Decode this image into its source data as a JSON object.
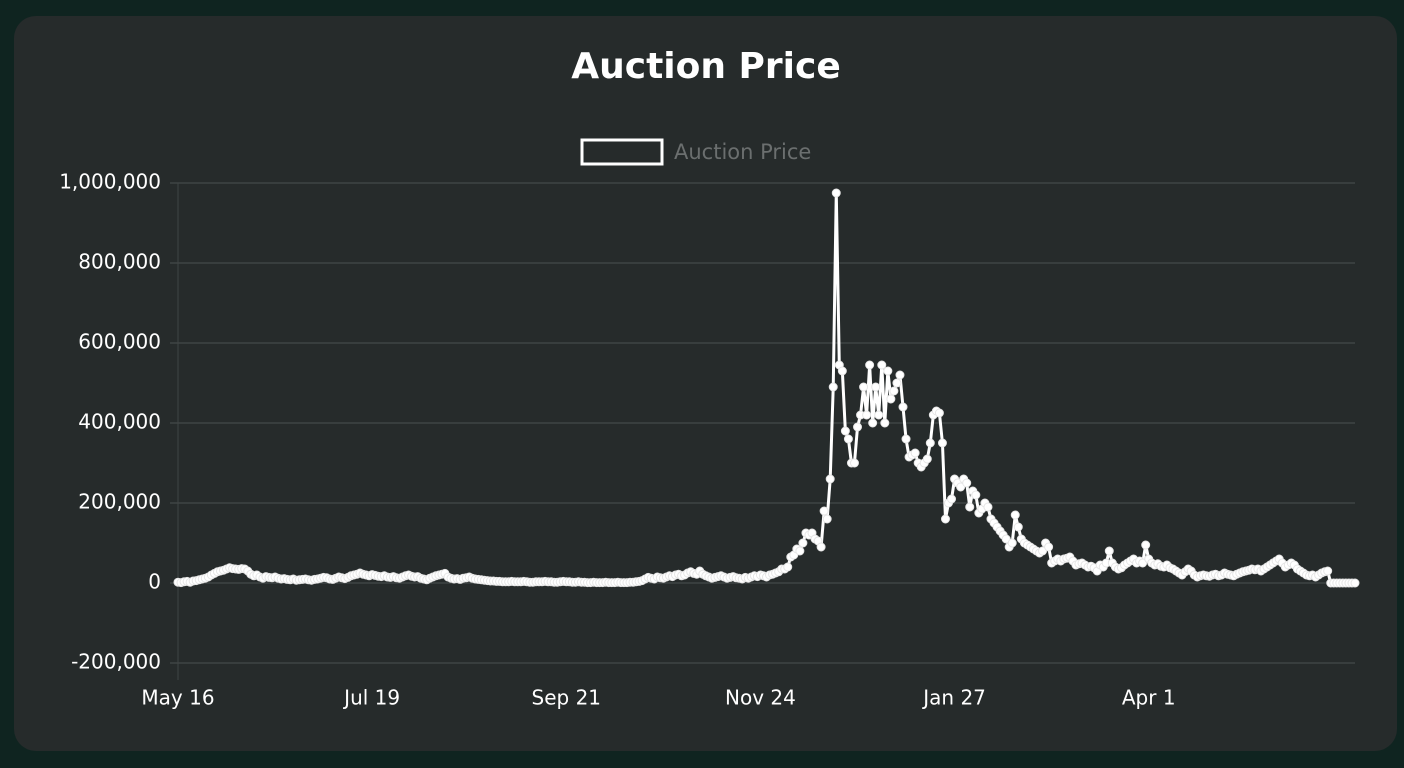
{
  "chart_data": {
    "type": "line",
    "title": "Auction Price",
    "categories": [
      "May 16",
      null,
      null,
      null,
      null,
      null,
      null,
      null,
      null,
      null,
      null,
      null,
      null,
      null,
      null,
      null,
      null,
      null,
      null,
      null,
      null,
      null,
      null,
      null,
      null,
      null,
      null,
      null,
      null,
      null,
      null,
      null,
      null,
      null,
      null,
      null,
      null,
      null,
      null,
      null,
      null,
      null,
      null,
      null,
      null,
      null,
      null,
      null,
      null,
      null,
      null,
      null,
      null,
      null,
      null,
      null,
      null,
      null,
      null,
      null,
      null,
      null,
      null,
      null,
      "Jul 19",
      null,
      null,
      null,
      null,
      null,
      null,
      null,
      null,
      null,
      null,
      null,
      null,
      null,
      null,
      null,
      null,
      null,
      null,
      null,
      null,
      null,
      null,
      null,
      null,
      null,
      null,
      null,
      null,
      null,
      null,
      null,
      null,
      null,
      null,
      null,
      null,
      null,
      null,
      null,
      null,
      null,
      null,
      null,
      null,
      null,
      null,
      null,
      null,
      null,
      null,
      null,
      null,
      null,
      null,
      null,
      null,
      null,
      null,
      null,
      null,
      null,
      null,
      null,
      "Sep 21",
      null,
      null,
      null,
      null,
      null,
      null,
      null,
      null,
      null,
      null,
      null,
      null,
      null,
      null,
      null,
      null,
      null,
      null,
      null,
      null,
      null,
      null,
      null,
      null,
      null,
      null,
      null,
      null,
      null,
      null,
      null,
      null,
      null,
      null,
      null,
      null,
      null,
      null,
      null,
      null,
      null,
      null,
      null,
      null,
      null,
      null,
      null,
      null,
      null,
      null,
      null,
      null,
      null,
      null,
      null,
      null,
      null,
      null,
      null,
      null,
      null,
      null,
      null,
      "Nov 24",
      null,
      null,
      null,
      null,
      null,
      null,
      null,
      null,
      null,
      null,
      null,
      null,
      null,
      null,
      null,
      null,
      null,
      null,
      null,
      null,
      null,
      null,
      null,
      null,
      null,
      null,
      null,
      null,
      null,
      null,
      null,
      null,
      null,
      null,
      null,
      null,
      null,
      null,
      null,
      null,
      null,
      null,
      null,
      null,
      null,
      null,
      null,
      null,
      null,
      null,
      null,
      null,
      null,
      null,
      null,
      null,
      null,
      null,
      null,
      null,
      null,
      null,
      null,
      "Jan 27",
      null,
      null,
      null,
      null,
      null,
      null,
      null,
      null,
      null,
      null,
      null,
      null,
      null,
      null,
      null,
      null,
      null,
      null,
      null,
      null,
      null,
      null,
      null,
      null,
      null,
      null,
      null,
      null,
      null,
      null,
      null,
      null,
      null,
      null,
      null,
      null,
      null,
      null,
      null,
      null,
      null,
      null,
      null,
      null,
      null,
      null,
      null,
      null,
      null,
      null,
      null,
      null,
      null,
      null,
      null,
      null,
      null,
      null,
      null,
      null,
      null,
      null,
      null,
      "Apr 1",
      null,
      null,
      null,
      null,
      null,
      null,
      null,
      null,
      null,
      null,
      null,
      null,
      null,
      null,
      null,
      null,
      null,
      null,
      null,
      null,
      null,
      null,
      null,
      null,
      null,
      null,
      null,
      null,
      null,
      null,
      null,
      null,
      null,
      null,
      null,
      null,
      null,
      null,
      null,
      null,
      null,
      null,
      null,
      null,
      null,
      null,
      null,
      null,
      null,
      null,
      null,
      null,
      null,
      null,
      null,
      null,
      null,
      null,
      null,
      null,
      null,
      null,
      null,
      null,
      null,
      null,
      null,
      null
    ],
    "series": [
      {
        "name": "Auction Price",
        "color": "#ffffff",
        "values": [
          2000,
          1000,
          3000,
          4000,
          2000,
          5000,
          6000,
          8000,
          10000,
          12000,
          15000,
          20000,
          24000,
          28000,
          30000,
          32000,
          35000,
          38000,
          36000,
          35000,
          34000,
          36000,
          35000,
          30000,
          22000,
          18000,
          20000,
          15000,
          12000,
          16000,
          14000,
          13000,
          15000,
          12000,
          10000,
          11000,
          9000,
          8000,
          10000,
          7000,
          8000,
          9000,
          10000,
          8000,
          7000,
          9000,
          10000,
          12000,
          14000,
          13000,
          10000,
          9000,
          12000,
          15000,
          13000,
          11000,
          14000,
          18000,
          20000,
          22000,
          25000,
          22000,
          20000,
          18000,
          21000,
          19000,
          17000,
          16000,
          18000,
          15000,
          14000,
          16000,
          13000,
          12000,
          15000,
          18000,
          20000,
          17000,
          15000,
          16000,
          12000,
          10000,
          8000,
          12000,
          15000,
          18000,
          20000,
          22000,
          24000,
          15000,
          12000,
          10000,
          11000,
          9000,
          12000,
          13000,
          15000,
          12000,
          10000,
          9000,
          8000,
          7000,
          6000,
          5000,
          5000,
          4000,
          4000,
          3000,
          3000,
          3000,
          4000,
          3000,
          3000,
          3000,
          4000,
          3000,
          2000,
          2000,
          3000,
          3000,
          3000,
          4000,
          3000,
          3000,
          2000,
          2000,
          3000,
          4000,
          3000,
          3000,
          2000,
          2000,
          3000,
          2000,
          2000,
          1000,
          1000,
          2000,
          1000,
          1000,
          1000,
          2000,
          1000,
          1000,
          1000,
          2000,
          1000,
          1000,
          1000,
          2000,
          2000,
          3000,
          4000,
          6000,
          10000,
          14000,
          12000,
          10000,
          15000,
          13000,
          12000,
          15000,
          18000,
          16000,
          20000,
          22000,
          18000,
          20000,
          25000,
          28000,
          24000,
          22000,
          30000,
          22000,
          18000,
          15000,
          12000,
          14000,
          16000,
          18000,
          15000,
          12000,
          14000,
          16000,
          13000,
          12000,
          10000,
          14000,
          12000,
          15000,
          18000,
          16000,
          20000,
          18000,
          15000,
          20000,
          22000,
          25000,
          28000,
          35000,
          35000,
          40000,
          65000,
          70000,
          85000,
          80000,
          100000,
          125000,
          120000,
          125000,
          110000,
          105000,
          90000,
          180000,
          160000,
          260000,
          490000,
          975000,
          545000,
          530000,
          380000,
          360000,
          300000,
          300000,
          390000,
          420000,
          490000,
          420000,
          545000,
          400000,
          490000,
          420000,
          545000,
          400000,
          530000,
          460000,
          480000,
          500000,
          520000,
          440000,
          360000,
          315000,
          320000,
          325000,
          300000,
          290000,
          300000,
          310000,
          350000,
          420000,
          430000,
          425000,
          350000,
          160000,
          200000,
          210000,
          260000,
          250000,
          240000,
          260000,
          250000,
          190000,
          230000,
          220000,
          175000,
          185000,
          200000,
          190000,
          160000,
          150000,
          140000,
          130000,
          120000,
          110000,
          90000,
          100000,
          170000,
          140000,
          110000,
          100000,
          95000,
          90000,
          85000,
          80000,
          75000,
          80000,
          100000,
          90000,
          50000,
          55000,
          60000,
          55000,
          60000,
          62000,
          65000,
          55000,
          45000,
          48000,
          50000,
          45000,
          40000,
          42000,
          38000,
          30000,
          45000,
          40000,
          50000,
          80000,
          50000,
          40000,
          35000,
          38000,
          45000,
          50000,
          55000,
          60000,
          50000,
          55000,
          50000,
          95000,
          60000,
          50000,
          45000,
          48000,
          42000,
          40000,
          45000,
          38000,
          35000,
          30000,
          25000,
          20000,
          28000,
          35000,
          30000,
          20000,
          15000,
          18000,
          20000,
          18000,
          17000,
          20000,
          22000,
          18000,
          20000,
          25000,
          22000,
          20000,
          18000,
          22000,
          25000,
          28000,
          30000,
          32000,
          35000,
          33000,
          35000,
          30000,
          35000,
          40000,
          45000,
          50000,
          55000,
          60000,
          50000,
          40000,
          45000,
          50000,
          45000,
          35000,
          30000,
          25000,
          20000,
          18000,
          20000,
          15000,
          20000,
          25000,
          28000,
          30000,
          0,
          0,
          0,
          0,
          0,
          0,
          0,
          0,
          0
        ]
      }
    ],
    "ylim": [
      -200000,
      1000000
    ],
    "yticks": [
      {
        "value": -200000,
        "label": "-200,000"
      },
      0,
      {
        "value": 200000,
        "label": "200,000"
      },
      {
        "value": 400000,
        "label": "400,000"
      },
      {
        "value": 600000,
        "label": "600,000"
      },
      {
        "value": 800000,
        "label": "800,000"
      },
      {
        "value": 1000000,
        "label": "1,000,000"
      }
    ],
    "grid": true,
    "legend": "top"
  }
}
